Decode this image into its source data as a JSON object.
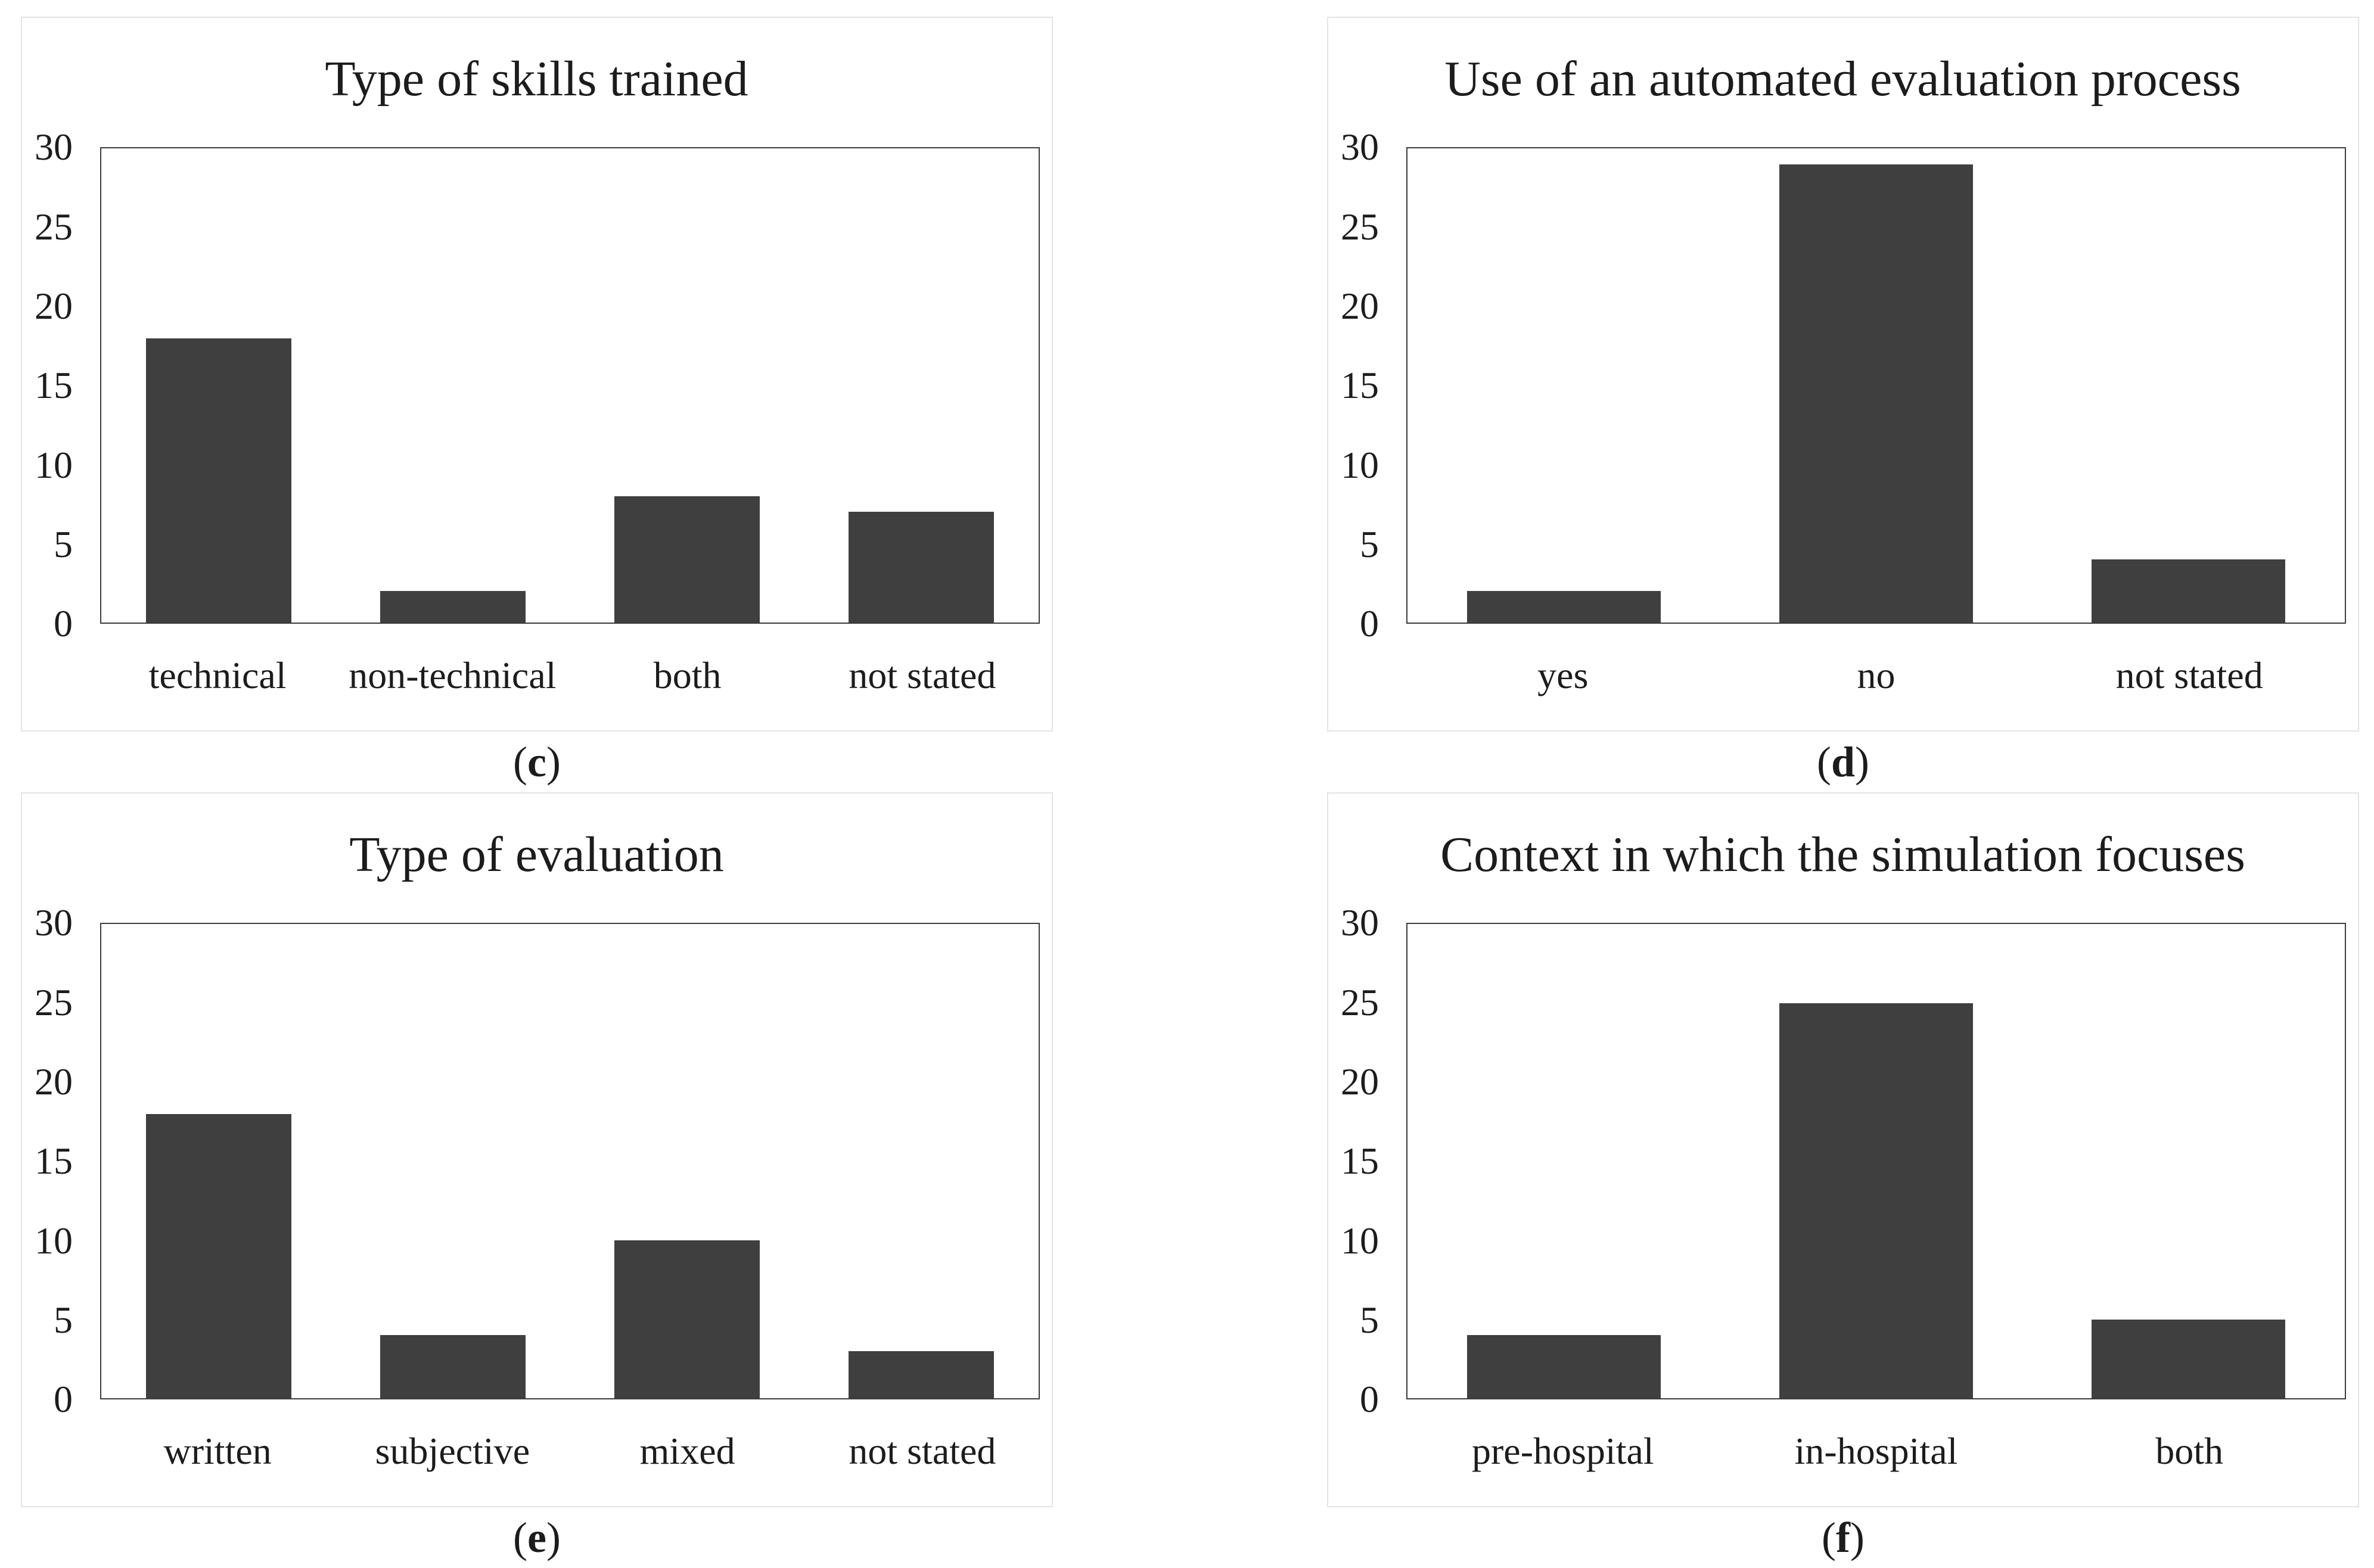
{
  "chart_data": [
    {
      "type": "bar",
      "title": "Type of skills trained",
      "caption": {
        "open": "(",
        "letter": "c",
        "close": ")"
      },
      "categories": [
        "technical",
        "non-technical",
        "both",
        "not stated"
      ],
      "values": [
        18,
        2,
        8,
        7
      ],
      "ylim": [
        0,
        30
      ],
      "yticks": [
        0,
        5,
        10,
        15,
        20,
        25,
        30
      ],
      "xlabel": "",
      "ylabel": "",
      "grid": false,
      "legend": "none",
      "bar_color": "#3F3F3F"
    },
    {
      "type": "bar",
      "title": "Use of an automated evaluation process",
      "caption": {
        "open": "(",
        "letter": "d",
        "close": ")"
      },
      "categories": [
        "yes",
        "no",
        "not stated"
      ],
      "values": [
        2,
        29,
        4
      ],
      "ylim": [
        0,
        30
      ],
      "yticks": [
        0,
        5,
        10,
        15,
        20,
        25,
        30
      ],
      "xlabel": "",
      "ylabel": "",
      "grid": false,
      "legend": "none",
      "bar_color": "#3F3F3F"
    },
    {
      "type": "bar",
      "title": "Type of evaluation",
      "caption": {
        "open": "(",
        "letter": "e",
        "close": ")"
      },
      "categories": [
        "written",
        "subjective",
        "mixed",
        "not stated"
      ],
      "values": [
        18,
        4,
        10,
        3
      ],
      "ylim": [
        0,
        30
      ],
      "yticks": [
        0,
        5,
        10,
        15,
        20,
        25,
        30
      ],
      "xlabel": "",
      "ylabel": "",
      "grid": false,
      "legend": "none",
      "bar_color": "#3F3F3F"
    },
    {
      "type": "bar",
      "title": "Context in which the simulation focuses",
      "caption": {
        "open": "(",
        "letter": "f",
        "close": ")"
      },
      "categories": [
        "pre-hospital",
        "in-hospital",
        "both"
      ],
      "values": [
        4,
        25,
        5
      ],
      "ylim": [
        0,
        30
      ],
      "yticks": [
        0,
        5,
        10,
        15,
        20,
        25,
        30
      ],
      "xlabel": "",
      "ylabel": "",
      "grid": false,
      "legend": "none",
      "bar_color": "#3F3F3F"
    }
  ]
}
